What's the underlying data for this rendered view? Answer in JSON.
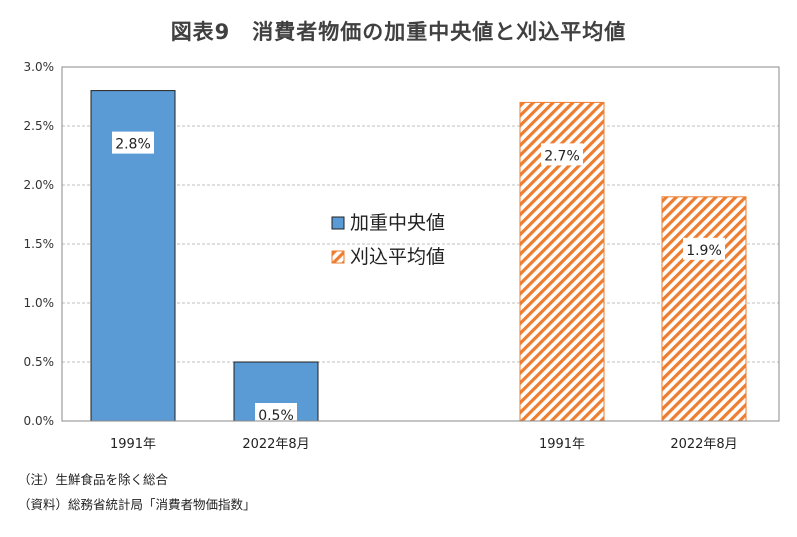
{
  "title": "図表9　消費者物価の加重中央値と刈込平均値",
  "notes": {
    "note1": "（注）生鮮食品を除く総合",
    "note2": "（資料）総務省統計局「消費者物価指数」"
  },
  "colors": {
    "median_fill": "#5b9bd5",
    "trimmed_stripe": "#ed7d31",
    "axis": "#888888",
    "grid": "#bfbfbf"
  },
  "chart_data": {
    "type": "bar",
    "title": "図表9　消費者物価の加重中央値と刈込平均値",
    "xlabel": "",
    "ylabel": "",
    "ylim": [
      0,
      3.0
    ],
    "y_ticks": [
      "0.0%",
      "0.5%",
      "1.0%",
      "1.5%",
      "2.0%",
      "2.5%",
      "3.0%"
    ],
    "grid": true,
    "legend_position": "center",
    "series": [
      {
        "name": "加重中央値",
        "categories": [
          "1991年",
          "2022年8月"
        ],
        "values": [
          2.8,
          0.5
        ],
        "labels": [
          "2.8%",
          "0.5%"
        ]
      },
      {
        "name": "刈込平均値",
        "categories": [
          "1991年",
          "2022年8月"
        ],
        "values": [
          2.7,
          1.9
        ],
        "labels": [
          "2.7%",
          "1.9%"
        ]
      }
    ]
  }
}
